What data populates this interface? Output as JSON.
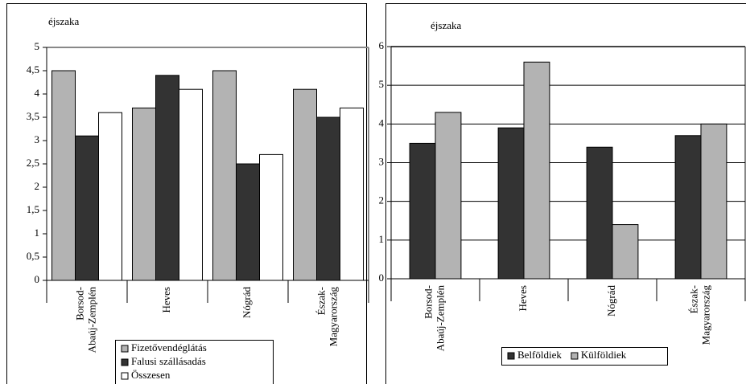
{
  "chart_data": [
    {
      "type": "bar",
      "y_label": "éjszaka",
      "categories": [
        "Borsod-Abaúj-Zemplén",
        "Heves",
        "Nógrád",
        "Észak-Magyarország"
      ],
      "series": [
        {
          "name": "Fizetővendéglátás",
          "color": "#b3b3b3",
          "values": [
            4.5,
            3.7,
            4.5,
            4.1
          ]
        },
        {
          "name": "Falusi szállásadás",
          "color": "#333333",
          "values": [
            3.1,
            4.4,
            2.5,
            3.5
          ]
        },
        {
          "name": "Összesen",
          "color": "#ffffff",
          "values": [
            3.6,
            4.1,
            2.7,
            3.7
          ]
        }
      ],
      "ylim": [
        0,
        5
      ],
      "yticks": [
        0,
        {
          "value": 0.5,
          "label": "0,5"
        },
        1,
        {
          "value": 1.5,
          "label": "1,5"
        },
        2,
        {
          "value": 2.5,
          "label": "2,5"
        },
        3,
        {
          "value": 3.5,
          "label": "3,5"
        },
        4,
        {
          "value": 4.5,
          "label": "4,5"
        },
        5
      ],
      "grid": false,
      "legend": "bottom"
    },
    {
      "type": "bar",
      "y_label": "éjszaka",
      "categories": [
        "Borsod-Abaúj-Zemplén",
        "Heves",
        "Nógrád",
        "Észak-Magyarország"
      ],
      "series": [
        {
          "name": "Belföldiek",
          "color": "#333333",
          "values": [
            3.5,
            3.9,
            3.4,
            3.7
          ]
        },
        {
          "name": "Külföldiek",
          "color": "#b3b3b3",
          "values": [
            4.3,
            5.6,
            1.4,
            4.0
          ]
        }
      ],
      "ylim": [
        0,
        6
      ],
      "yticks": [
        0,
        1,
        2,
        3,
        4,
        5,
        6
      ],
      "grid": true,
      "legend": "bottom"
    }
  ]
}
